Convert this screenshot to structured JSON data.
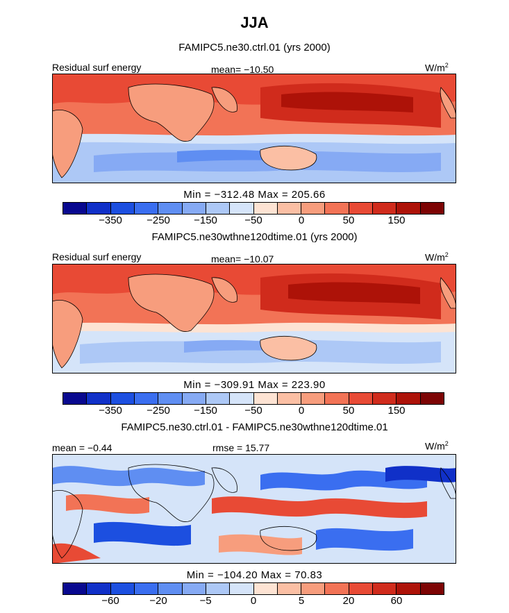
{
  "page": {
    "title": "JJA"
  },
  "colors": {
    "abs_scale": [
      "#08088f",
      "#1030c8",
      "#1c4fe0",
      "#3a6ef0",
      "#5f8ef2",
      "#86aaf4",
      "#adc8f6",
      "#d5e4f9",
      "#fde3d3",
      "#fbbfa4",
      "#f79d7d",
      "#f27356",
      "#e84a35",
      "#d02b1c",
      "#ad1208",
      "#7d0404"
    ],
    "diff_scale": [
      "#08088f",
      "#1030c8",
      "#1c4fe0",
      "#3a6ef0",
      "#5f8ef2",
      "#86aaf4",
      "#adc8f6",
      "#d5e4f9",
      "#fde3d3",
      "#fbbfa4",
      "#f79d7d",
      "#f27356",
      "#e84a35",
      "#d02b1c",
      "#ad1208",
      "#7d0404"
    ]
  },
  "panels": [
    {
      "title": "FAMIPC5.ne30.ctrl.01 (yrs 2000)",
      "left_label": "Residual surf energy",
      "center_label": "mean= −10.50",
      "units": "W/m",
      "units_sup": "2",
      "minmax": "Min = −312.48 Max = 205.66",
      "colorbar_ticks": [
        "−350",
        "−250",
        "−150",
        "−50",
        "0",
        "50",
        "150"
      ],
      "field": {
        "mean": -10.5,
        "min": -312.48,
        "max": 205.66
      }
    },
    {
      "title": "FAMIPC5.ne30wthne120dtime.01 (yrs 2000)",
      "left_label": "Residual surf energy",
      "center_label": "mean= −10.07",
      "units": "W/m",
      "units_sup": "2",
      "minmax": "Min = −309.91 Max = 223.90",
      "colorbar_ticks": [
        "−350",
        "−250",
        "−150",
        "−50",
        "0",
        "50",
        "150"
      ],
      "field": {
        "mean": -10.07,
        "min": -309.91,
        "max": 223.9
      }
    },
    {
      "title": "FAMIPC5.ne30.ctrl.01 - FAMIPC5.ne30wthne120dtime.01",
      "left_label": "mean =  −0.44",
      "center_label": "rmse =  15.77",
      "units": "W/m",
      "units_sup": "2",
      "minmax": "Min = −104.20 Max = 70.83",
      "colorbar_ticks": [
        "−60",
        "−20",
        "−5",
        "0",
        "5",
        "20",
        "60"
      ],
      "field": {
        "mean": -0.44,
        "rmse": 15.77,
        "min": -104.2,
        "max": 70.83
      }
    }
  ]
}
